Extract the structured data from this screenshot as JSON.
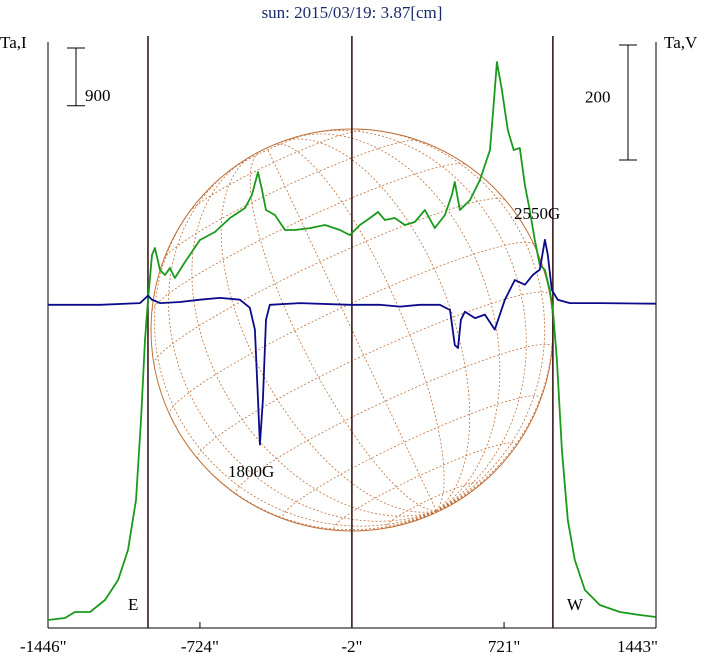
{
  "chart_data": {
    "type": "line",
    "title": "sun: 2015/03/19: 3.87[cm]",
    "xlim": [
      -1446,
      1443
    ],
    "xticks": [
      {
        "value": -1446,
        "label": "-1446\""
      },
      {
        "value": -724,
        "label": "-724\""
      },
      {
        "value": -2,
        "label": "-2\""
      },
      {
        "value": 721,
        "label": "721\""
      },
      {
        "value": 1443,
        "label": "1443\""
      }
    ],
    "ylim": [
      0,
      9000
    ],
    "y2lim": [
      -548,
      457
    ],
    "scalebar": 900,
    "scalebar2": 200,
    "vlines": [
      -971,
      -2,
      953
    ],
    "limb_labels": [
      "E",
      "W"
    ],
    "annotations": [
      "1800G",
      "2550G"
    ],
    "series": [
      {
        "name": "Ta,I",
        "color": "#1a9a1a",
        "axis": "y",
        "x": [
          -1446,
          -1365,
          -1318,
          -1246,
          -1175,
          -1113,
          -1066,
          -1028,
          -1004,
          -985,
          -971,
          -952,
          -938,
          -914,
          -890,
          -867,
          -843,
          -819,
          -795,
          -772,
          -724,
          -653,
          -581,
          -510,
          -477,
          -448,
          -429,
          -410,
          -368,
          -320,
          -273,
          -201,
          -130,
          -59,
          -12,
          36,
          84,
          122,
          155,
          202,
          250,
          297,
          345,
          392,
          440,
          473,
          487,
          511,
          559,
          606,
          654,
          673,
          687,
          711,
          739,
          767,
          796,
          820,
          843,
          867,
          891,
          915,
          938,
          953,
          972,
          996,
          1024,
          1057,
          1105,
          1176,
          1271,
          1366,
          1442
        ],
        "values": [
          0,
          31,
          125,
          125,
          311,
          623,
          1090,
          1868,
          3114,
          4360,
          4982,
          5683,
          5792,
          5450,
          5372,
          5481,
          5325,
          5450,
          5574,
          5683,
          5917,
          6041,
          6259,
          6415,
          6617,
          6975,
          6695,
          6384,
          6306,
          6072,
          6072,
          6103,
          6150,
          6072,
          5994,
          6150,
          6259,
          6353,
          6228,
          6259,
          6150,
          6197,
          6384,
          6103,
          6306,
          6617,
          6820,
          6384,
          6539,
          6851,
          7318,
          8096,
          8688,
          8252,
          7629,
          7318,
          7349,
          6773,
          6384,
          5917,
          5527,
          5450,
          5138,
          4827,
          4048,
          2647,
          1557,
          934,
          467,
          234,
          125,
          78,
          47
        ]
      },
      {
        "name": "Ta,V",
        "color": "#0a0a8a",
        "axis": "y2",
        "x": [
          -1446,
          -1199,
          -1009,
          -971,
          -952,
          -914,
          -819,
          -724,
          -629,
          -534,
          -487,
          -463,
          -448,
          -439,
          -425,
          -410,
          -392,
          -249,
          -12,
          131,
          226,
          321,
          416,
          464,
          487,
          502,
          516,
          535,
          583,
          630,
          677,
          725,
          772,
          820,
          858,
          891,
          915,
          929,
          948,
          976,
          1034,
          1176,
          1442
        ],
        "values": [
          0,
          0,
          3,
          16,
          9,
          3,
          5,
          9,
          12,
          9,
          -5,
          -43,
          -165,
          -243,
          -165,
          -26,
          0,
          3,
          0,
          0,
          -3,
          0,
          0,
          -9,
          -70,
          -75,
          -26,
          -12,
          -23,
          -17,
          -43,
          9,
          43,
          35,
          52,
          61,
          113,
          87,
          26,
          9,
          3,
          3,
          2
        ]
      }
    ]
  }
}
